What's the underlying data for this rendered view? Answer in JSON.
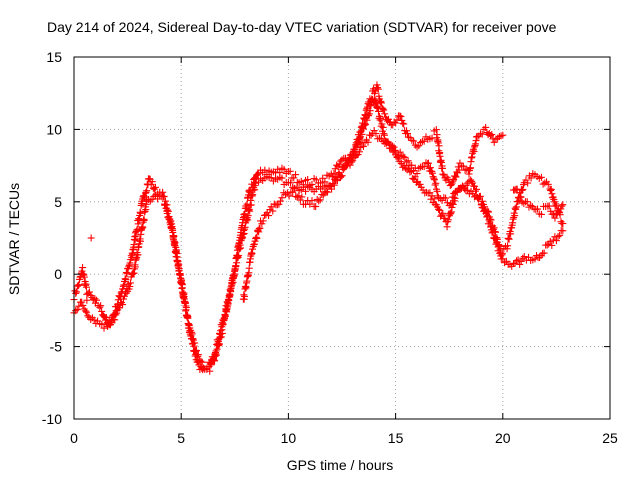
{
  "chart_data": {
    "type": "scatter",
    "title": "Day 214 of 2024, Sidereal Day-to-day VTEC variation (SDTVAR) for receiver pove",
    "xlabel": "GPS time / hours",
    "ylabel": "SDTVAR / TECUs",
    "xlim": [
      0,
      25
    ],
    "ylim": [
      -10,
      15
    ],
    "xticks": [
      "0",
      "5",
      "10",
      "15",
      "20",
      "25"
    ],
    "yticks": [
      "-10",
      "-5",
      "0",
      "5",
      "10",
      "15"
    ],
    "grid": true,
    "series": [
      {
        "name": "SDTVAR",
        "color": "#ff0000",
        "marker": "+",
        "tracks": [
          [
            [
              0.0,
              -1.5
            ],
            [
              0.2,
              -0.8
            ],
            [
              0.4,
              0.3
            ],
            [
              0.6,
              -1.2
            ],
            [
              0.9,
              -1.8
            ],
            [
              1.2,
              -2.2
            ],
            [
              1.6,
              -3.5
            ],
            [
              1.9,
              -2.6
            ],
            [
              2.3,
              -0.8
            ],
            [
              2.7,
              1.2
            ],
            [
              2.9,
              3.0
            ],
            [
              3.2,
              5.0
            ],
            [
              3.5,
              6.6
            ],
            [
              3.8,
              5.8
            ],
            [
              4.1,
              5.6
            ],
            [
              4.5,
              3.8
            ],
            [
              4.8,
              1.2
            ],
            [
              5.1,
              -1.5
            ],
            [
              5.4,
              -4.0
            ],
            [
              5.7,
              -5.8
            ],
            [
              6.0,
              -6.8
            ],
            [
              6.3,
              -6.6
            ],
            [
              6.6,
              -5.2
            ],
            [
              7.0,
              -3.0
            ],
            [
              7.4,
              -0.5
            ],
            [
              7.8,
              3.0
            ],
            [
              8.2,
              5.8
            ],
            [
              8.6,
              7.0
            ],
            [
              9.0,
              7.0
            ],
            [
              9.5,
              7.2
            ],
            [
              10.0,
              7.0
            ],
            [
              10.5,
              6.5
            ],
            [
              11.0,
              6.3
            ],
            [
              11.5,
              6.5
            ],
            [
              12.0,
              6.8
            ],
            [
              12.5,
              7.8
            ],
            [
              13.0,
              8.3
            ],
            [
              13.4,
              10.0
            ],
            [
              13.8,
              12.0
            ],
            [
              14.1,
              13.0
            ],
            [
              14.4,
              11.5
            ],
            [
              14.8,
              10.2
            ],
            [
              15.2,
              10.8
            ],
            [
              15.6,
              9.5
            ],
            [
              16.0,
              9.0
            ],
            [
              16.5,
              9.5
            ],
            [
              16.9,
              9.8
            ],
            [
              17.2,
              7.0
            ],
            [
              17.6,
              6.0
            ],
            [
              18.0,
              7.5
            ],
            [
              18.4,
              7.0
            ],
            [
              18.8,
              9.5
            ],
            [
              19.2,
              10.0
            ],
            [
              19.6,
              9.2
            ],
            [
              20.0,
              9.6
            ]
          ],
          [
            [
              0.0,
              -2.5
            ],
            [
              0.3,
              -2.0
            ],
            [
              0.7,
              -2.8
            ],
            [
              1.1,
              -3.3
            ],
            [
              1.5,
              -3.6
            ],
            [
              1.9,
              -3.0
            ],
            [
              2.4,
              -1.5
            ],
            [
              2.8,
              0.2
            ],
            [
              3.1,
              2.5
            ],
            [
              3.4,
              5.0
            ],
            [
              3.8,
              5.5
            ],
            [
              4.2,
              5.2
            ],
            [
              4.6,
              2.8
            ],
            [
              5.0,
              -0.5
            ],
            [
              5.4,
              -3.8
            ],
            [
              5.8,
              -5.8
            ],
            [
              6.1,
              -6.4
            ],
            [
              6.5,
              -6.1
            ],
            [
              6.9,
              -4.0
            ],
            [
              7.3,
              -1.0
            ],
            [
              7.7,
              1.5
            ],
            [
              8.1,
              4.0
            ],
            [
              8.5,
              6.5
            ],
            [
              9.0,
              6.8
            ],
            [
              9.5,
              6.6
            ],
            [
              10.0,
              6.3
            ],
            [
              10.5,
              6.0
            ],
            [
              11.0,
              5.8
            ],
            [
              11.5,
              6.0
            ],
            [
              12.0,
              6.3
            ],
            [
              12.5,
              7.0
            ],
            [
              13.0,
              8.0
            ],
            [
              13.5,
              9.0
            ],
            [
              14.0,
              9.7
            ],
            [
              14.5,
              9.2
            ],
            [
              15.0,
              8.5
            ],
            [
              15.5,
              7.8
            ],
            [
              16.0,
              7.2
            ],
            [
              16.5,
              7.8
            ],
            [
              17.0,
              5.5
            ],
            [
              17.5,
              5.0
            ],
            [
              18.0,
              5.8
            ],
            [
              18.5,
              6.5
            ],
            [
              19.0,
              5.0
            ],
            [
              19.5,
              3.0
            ],
            [
              20.0,
              1.0
            ],
            [
              20.5,
              0.5
            ],
            [
              21.0,
              1.2
            ],
            [
              21.5,
              1.0
            ],
            [
              22.0,
              1.8
            ],
            [
              22.5,
              2.5
            ],
            [
              22.8,
              3.0
            ]
          ],
          [
            [
              7.9,
              -1.8
            ],
            [
              8.3,
              1.5
            ],
            [
              8.7,
              3.5
            ],
            [
              9.2,
              4.5
            ],
            [
              9.7,
              5.3
            ],
            [
              10.2,
              5.8
            ],
            [
              10.7,
              5.0
            ],
            [
              11.2,
              4.8
            ],
            [
              11.7,
              5.5
            ],
            [
              12.2,
              6.5
            ],
            [
              12.7,
              7.5
            ],
            [
              13.2,
              8.8
            ],
            [
              13.7,
              11.0
            ],
            [
              14.0,
              12.2
            ],
            [
              14.3,
              10.5
            ],
            [
              14.6,
              9.0
            ],
            [
              15.0,
              8.2
            ],
            [
              15.4,
              7.5
            ],
            [
              15.8,
              6.8
            ],
            [
              16.2,
              6.0
            ],
            [
              16.6,
              5.5
            ],
            [
              17.0,
              4.5
            ],
            [
              17.4,
              3.5
            ],
            [
              17.8,
              5.5
            ],
            [
              18.2,
              6.0
            ],
            [
              18.6,
              5.5
            ],
            [
              19.0,
              5.0
            ],
            [
              19.3,
              4.2
            ],
            [
              19.6,
              3.0
            ],
            [
              19.9,
              1.5
            ],
            [
              20.2,
              2.0
            ],
            [
              20.6,
              4.5
            ],
            [
              21.0,
              6.3
            ],
            [
              21.4,
              6.8
            ],
            [
              21.8,
              6.5
            ],
            [
              22.2,
              6.0
            ],
            [
              22.5,
              4.5
            ],
            [
              22.8,
              3.5
            ]
          ],
          [
            [
              20.5,
              6.0
            ],
            [
              20.9,
              5.2
            ],
            [
              21.3,
              4.8
            ],
            [
              21.7,
              4.3
            ],
            [
              22.1,
              4.6
            ],
            [
              22.5,
              4.0
            ],
            [
              22.8,
              4.8
            ]
          ]
        ],
        "isolated": [
          [
            0.8,
            2.5
          ],
          [
            0.6,
            -1.8
          ],
          [
            1.0,
            -2.0
          ]
        ]
      }
    ]
  }
}
